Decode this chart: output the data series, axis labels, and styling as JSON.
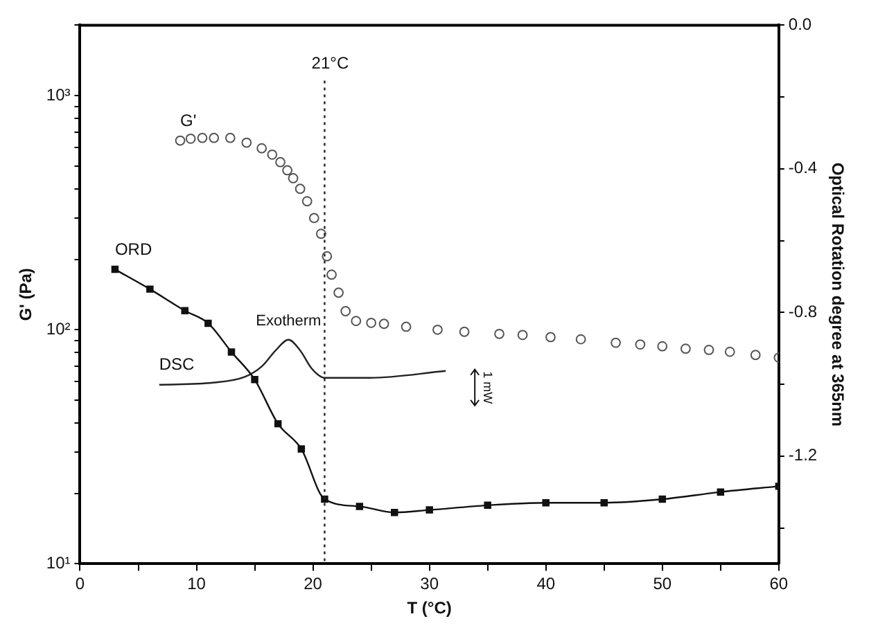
{
  "chart_data": {
    "type": "scatter",
    "xlabel": "T (°C)",
    "ylabel": "G' (Pa)",
    "y2label": "Optical Rotation degree at 365nm",
    "xlim": [
      0,
      60
    ],
    "xticks": [
      0,
      {
        "value": 5,
        "label": null
      },
      10,
      {
        "value": 15,
        "label": null
      },
      20,
      {
        "value": 25,
        "label": null
      },
      30,
      {
        "value": 35,
        "label": null
      },
      40,
      {
        "value": 45,
        "label": null
      },
      50,
      {
        "value": 55,
        "label": null
      },
      60
    ],
    "ylim": [
      10,
      2000
    ],
    "yticks": [
      {
        "value": 10,
        "label": "10¹"
      },
      {
        "value": 20,
        "label": null
      },
      {
        "value": 30,
        "label": null
      },
      {
        "value": 40,
        "label": null
      },
      {
        "value": 50,
        "label": null
      },
      {
        "value": 60,
        "label": null
      },
      {
        "value": 70,
        "label": null
      },
      {
        "value": 80,
        "label": null
      },
      {
        "value": 90,
        "label": null
      },
      {
        "value": 100,
        "label": "10²"
      },
      {
        "value": 200,
        "label": null
      },
      {
        "value": 300,
        "label": null
      },
      {
        "value": 400,
        "label": null
      },
      {
        "value": 500,
        "label": null
      },
      {
        "value": 600,
        "label": null
      },
      {
        "value": 700,
        "label": null
      },
      {
        "value": 800,
        "label": null
      },
      {
        "value": 900,
        "label": null
      },
      {
        "value": 1000,
        "label": "10³"
      },
      {
        "value": 2000,
        "label": null
      }
    ],
    "log": "y",
    "y2lim": [
      -1.5,
      0
    ],
    "y2ticks": [
      {
        "value": -1.4,
        "label": null
      },
      -1.2,
      {
        "value": -1.0,
        "label": null
      },
      -0.8,
      {
        "value": -0.6,
        "label": null
      },
      -0.4,
      {
        "value": -0.2,
        "label": null
      },
      {
        "value": 0,
        "label": "0.0"
      }
    ],
    "grid": false,
    "legend": false,
    "series": [
      {
        "name": "G'",
        "marker": "circle",
        "color": "#555555",
        "x": [
          8.6,
          9.5,
          10.5,
          11.5,
          12.9,
          14.3,
          15.6,
          16.5,
          17.2,
          17.8,
          18.3,
          18.9,
          19.5,
          20.1,
          20.7,
          21.2,
          21.6,
          22.2,
          22.8,
          23.7,
          25,
          26.1,
          28,
          30.7,
          33,
          36,
          38,
          40.4,
          43,
          46,
          48.1,
          50,
          52,
          54,
          55.8,
          58,
          60
        ],
        "values": [
          643,
          655,
          660,
          660,
          660,
          630,
          596,
          560,
          520,
          480,
          444,
          400,
          354,
          300,
          257,
          206,
          172,
          144,
          120,
          109,
          107,
          106,
          103,
          100,
          98,
          96,
          95,
          93,
          91,
          88,
          86.5,
          85,
          83,
          82,
          80.5,
          78,
          76
        ]
      },
      {
        "name": "ORD",
        "type": "line",
        "marker": "square",
        "axis": "y2",
        "color": "#111111",
        "x": [
          3,
          6,
          9,
          11,
          13,
          15,
          17,
          19,
          21,
          24,
          27,
          30,
          35,
          40,
          45,
          50,
          55,
          60
        ],
        "values": [
          -0.68,
          -0.735,
          -0.795,
          -0.83,
          -0.91,
          -0.987,
          -1.11,
          -1.18,
          -1.32,
          -1.34,
          -1.357,
          -1.35,
          -1.337,
          -1.33,
          -1.33,
          -1.32,
          -1.3,
          -1.284
        ]
      },
      {
        "name": "DSC",
        "type": "line",
        "marker": "none",
        "color": "#222222",
        "x": [
          6.8,
          11.4,
          14.1,
          15.6,
          16.8,
          17.9,
          18.9,
          19.9,
          21,
          24.9,
          31.4
        ],
        "values": [
          58.2,
          59.4,
          62.8,
          69.7,
          81.6,
          90.6,
          81.6,
          68.2,
          62.3,
          62.3,
          66.7
        ]
      }
    ],
    "ref_lines": [
      {
        "axis": "x",
        "value": 21,
        "label": "21°C",
        "line_style": "dotted",
        "color": "#222222"
      }
    ],
    "annotations": [
      "Exotherm",
      "1 mW"
    ]
  }
}
